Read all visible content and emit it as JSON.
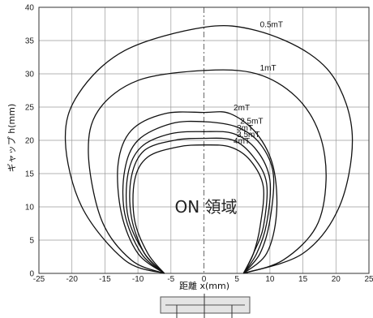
{
  "chart_data": {
    "type": "line",
    "xlabel": "距離 x(mm)",
    "ylabel": "ギャップ h(mm)",
    "xlim": [
      -25,
      25
    ],
    "ylim": [
      0,
      40
    ],
    "xticks": [
      -25,
      -20,
      -15,
      -10,
      -5,
      0,
      5,
      10,
      15,
      20,
      25
    ],
    "yticks": [
      0,
      5,
      10,
      15,
      20,
      25,
      30,
      35,
      40
    ],
    "grid": true,
    "annotation": "ON 領域",
    "series": [
      {
        "name": "0.5mT",
        "x": [
          -6,
          -12,
          -18.5,
          -21,
          -19,
          -12,
          0,
          8,
          16,
          20.5,
          22.5,
          20.5,
          15,
          6
        ],
        "y": [
          0,
          2,
          10,
          20,
          27,
          33.5,
          37,
          36.5,
          33,
          28,
          20,
          10,
          3,
          0
        ]
      },
      {
        "name": "1mT",
        "x": [
          -6,
          -11,
          -15.5,
          -17.5,
          -16,
          -10,
          0,
          8,
          14,
          17.5,
          18.5,
          17,
          12,
          6
        ],
        "y": [
          0,
          2,
          8,
          18,
          24.5,
          29,
          30.5,
          30,
          26.5,
          21,
          14,
          7,
          2,
          0
        ]
      },
      {
        "name": "2mT",
        "x": [
          -6,
          -10,
          -12.5,
          -13,
          -11,
          -6,
          0,
          4,
          8,
          10.5,
          11,
          9.5,
          6
        ],
        "y": [
          0,
          3,
          9,
          16.5,
          21.5,
          24,
          24.2,
          24,
          21,
          16,
          9,
          3,
          0
        ]
      },
      {
        "name": "2.5mT",
        "x": [
          -6,
          -9.5,
          -12,
          -12,
          -10,
          -5,
          0,
          5,
          8.5,
          10.5,
          10,
          8.5,
          6
        ],
        "y": [
          0,
          3,
          9,
          15.5,
          20,
          22.5,
          22.8,
          22,
          19.5,
          15,
          8,
          3,
          0
        ]
      },
      {
        "name": "3mT",
        "x": [
          -6,
          -9,
          -11.5,
          -11.5,
          -9.5,
          -5,
          0,
          4.5,
          8,
          10,
          9.5,
          8,
          6
        ],
        "y": [
          0,
          3,
          8.5,
          15,
          19,
          21,
          21.3,
          21,
          18.5,
          14,
          7.5,
          3,
          0
        ]
      },
      {
        "name": "3.5mT",
        "x": [
          -6,
          -9,
          -11,
          -11,
          -9,
          -4.5,
          0,
          4.5,
          7.5,
          9.5,
          9,
          7.5,
          6
        ],
        "y": [
          0,
          3,
          8.5,
          14.5,
          18.5,
          20,
          20.3,
          20,
          17.5,
          13.5,
          7,
          3,
          0
        ]
      },
      {
        "name": "4mT",
        "x": [
          -6,
          -8.5,
          -10.5,
          -10.5,
          -8.5,
          -4,
          0,
          4,
          7,
          9,
          8.5,
          7.5,
          6
        ],
        "y": [
          0,
          3,
          8,
          14,
          17.5,
          19,
          19.3,
          19,
          17,
          13,
          7,
          3,
          0
        ]
      }
    ]
  }
}
